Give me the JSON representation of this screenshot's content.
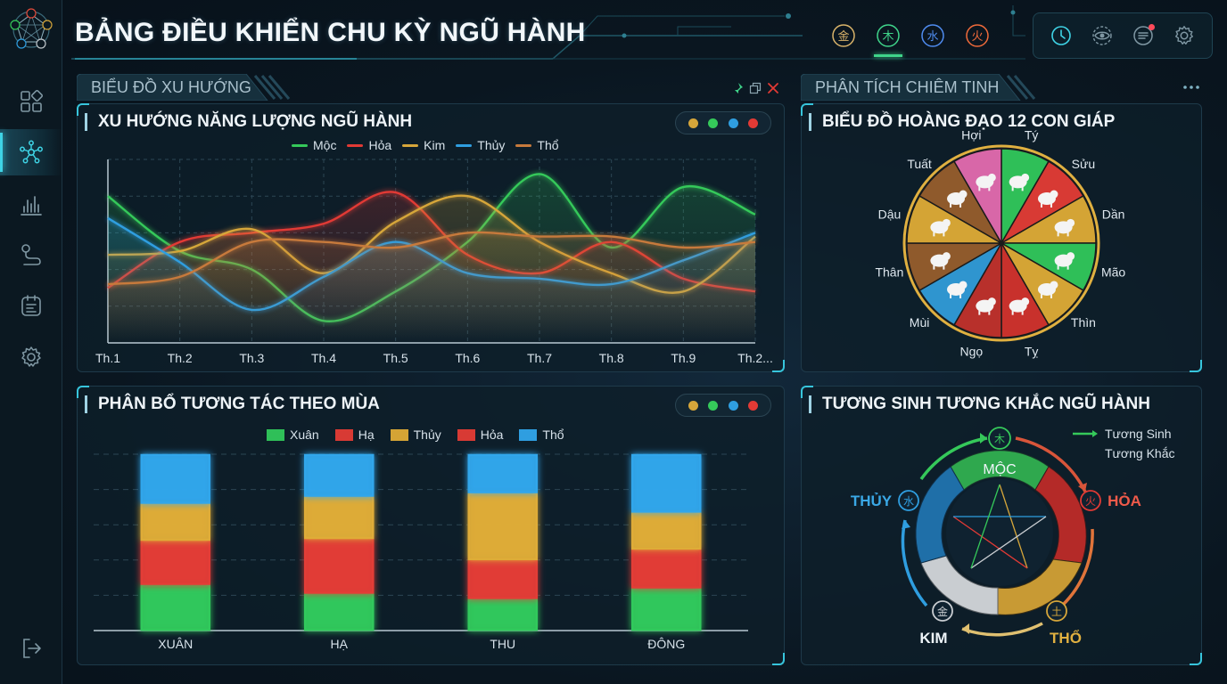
{
  "header": {
    "title": "BẢNG ĐIỀU KHIỂN CHU KỲ NGŨ HÀNH",
    "element_tabs": [
      {
        "name": "kim-icon",
        "glyph": "金",
        "color": "#d9b36a"
      },
      {
        "name": "moc-icon",
        "glyph": "木",
        "color": "#3fd48a"
      },
      {
        "name": "thuy-icon",
        "glyph": "水",
        "color": "#4f8cf0"
      },
      {
        "name": "hoa-icon",
        "glyph": "火",
        "color": "#ef6a3a"
      }
    ]
  },
  "sections": {
    "left_label": "BIỂU ĐỒ XU HƯỚNG",
    "right_label": "PHÂN TÍCH CHIÊM TINH"
  },
  "colors": {
    "moc": "#35c95a",
    "hoa": "#e23a35",
    "kim": "#d6a63a",
    "thuy": "#2f9ee0",
    "tho": "#c77a3c",
    "accent": "#3fd4e6",
    "panel_bg": "#0d1e2a"
  },
  "trend_panel": {
    "title": "XU HƯỚNG NĂNG LƯỢNG NGŨ HÀNH",
    "dots": [
      "#d6a63a",
      "#35c95a",
      "#2f9ee0",
      "#e23a35"
    ]
  },
  "season_panel": {
    "title": "PHÂN BỔ TƯƠNG TÁC THEO MÙA",
    "dots": [
      "#d6a63a",
      "#35c95a",
      "#2f9ee0",
      "#e23a35"
    ]
  },
  "zodiac_panel": {
    "title": "BIỂU ĐỒ HOÀNG ĐẠO 12 CON GIÁP",
    "signs": [
      {
        "label": "Tý",
        "color": "#2fbf58",
        "icon": "rat-icon"
      },
      {
        "label": "Sửu",
        "color": "#d83a34",
        "icon": "ox-icon"
      },
      {
        "label": "Dần",
        "color": "#d4a435",
        "icon": "tiger-icon"
      },
      {
        "label": "Mão",
        "color": "#2fbf58",
        "icon": "cat-icon"
      },
      {
        "label": "Thìn",
        "color": "#d4a435",
        "icon": "dragon-icon"
      },
      {
        "label": "Tỵ",
        "color": "#c8312c",
        "icon": "snake-icon"
      },
      {
        "label": "Ngọ",
        "color": "#b8302b",
        "icon": "horse-icon"
      },
      {
        "label": "Mùi",
        "color": "#2f95cf",
        "icon": "goat-icon"
      },
      {
        "label": "Thân",
        "color": "#8f5a2c",
        "icon": "monkey-icon"
      },
      {
        "label": "Dậu",
        "color": "#d4a435",
        "icon": "rooster-icon"
      },
      {
        "label": "Tuất",
        "color": "#8f5a2c",
        "icon": "dog-icon"
      },
      {
        "label": "Hợi",
        "color": "#d867a8",
        "icon": "pig-icon"
      }
    ]
  },
  "cycle_panel": {
    "title": "TƯƠNG SINH TƯƠNG KHẮC NGŨ HÀNH",
    "legend": {
      "sinh": "Tương Sinh",
      "khac": "Tương Khắc"
    },
    "elements": {
      "moc": "MỘC",
      "hoa": "HỎA",
      "tho": "THỔ",
      "kim": "KIM",
      "thuy": "THỦY"
    }
  },
  "chart_data": [
    {
      "type": "line",
      "title": "XU HƯỚNG NĂNG LƯỢNG NGŨ HÀNH",
      "categories": [
        "Th.1",
        "Th.2",
        "Th.3",
        "Th.4",
        "Th.5",
        "Th.6",
        "Th.7",
        "Th.8",
        "Th.9",
        "Th.2..."
      ],
      "ylim": [
        0,
        100
      ],
      "grid": true,
      "legend_position": "top",
      "series": [
        {
          "name": "Mộc",
          "color": "#35c95a",
          "values": [
            80,
            50,
            40,
            12,
            28,
            55,
            92,
            52,
            85,
            70
          ]
        },
        {
          "name": "Hỏa",
          "color": "#e23a35",
          "values": [
            30,
            55,
            60,
            65,
            82,
            48,
            38,
            55,
            35,
            28
          ]
        },
        {
          "name": "Kim",
          "color": "#d6a63a",
          "values": [
            48,
            50,
            62,
            38,
            66,
            80,
            55,
            38,
            28,
            58
          ]
        },
        {
          "name": "Thủy",
          "color": "#2f9ee0",
          "values": [
            68,
            44,
            18,
            36,
            55,
            38,
            35,
            32,
            45,
            60
          ]
        },
        {
          "name": "Thổ",
          "color": "#c77a3c",
          "values": [
            32,
            36,
            55,
            55,
            52,
            60,
            58,
            58,
            52,
            55
          ]
        }
      ]
    },
    {
      "type": "bar",
      "stacked": true,
      "title": "PHÂN BỔ TƯƠNG TÁC THEO MÙA",
      "categories": [
        "XUÂN",
        "HẠ",
        "THU",
        "ĐÔNG"
      ],
      "ylim": [
        0,
        100
      ],
      "grid": true,
      "legend_position": "top",
      "series": [
        {
          "name": "Xuân",
          "color": "#2fbf58",
          "values": [
            26,
            21,
            18,
            24
          ]
        },
        {
          "name": "Hạ",
          "color": "#d83a34",
          "values": [
            25,
            31,
            22,
            22
          ]
        },
        {
          "name": "Thủy",
          "color": "#d4a435",
          "values": [
            21,
            24,
            38,
            21
          ]
        },
        {
          "name": "Hỏa",
          "color": "#d83a34",
          "values": [
            0,
            0,
            0,
            0
          ]
        },
        {
          "name": "Thổ",
          "color": "#2f9ee0",
          "values": [
            28,
            24,
            22,
            33
          ]
        }
      ]
    }
  ]
}
